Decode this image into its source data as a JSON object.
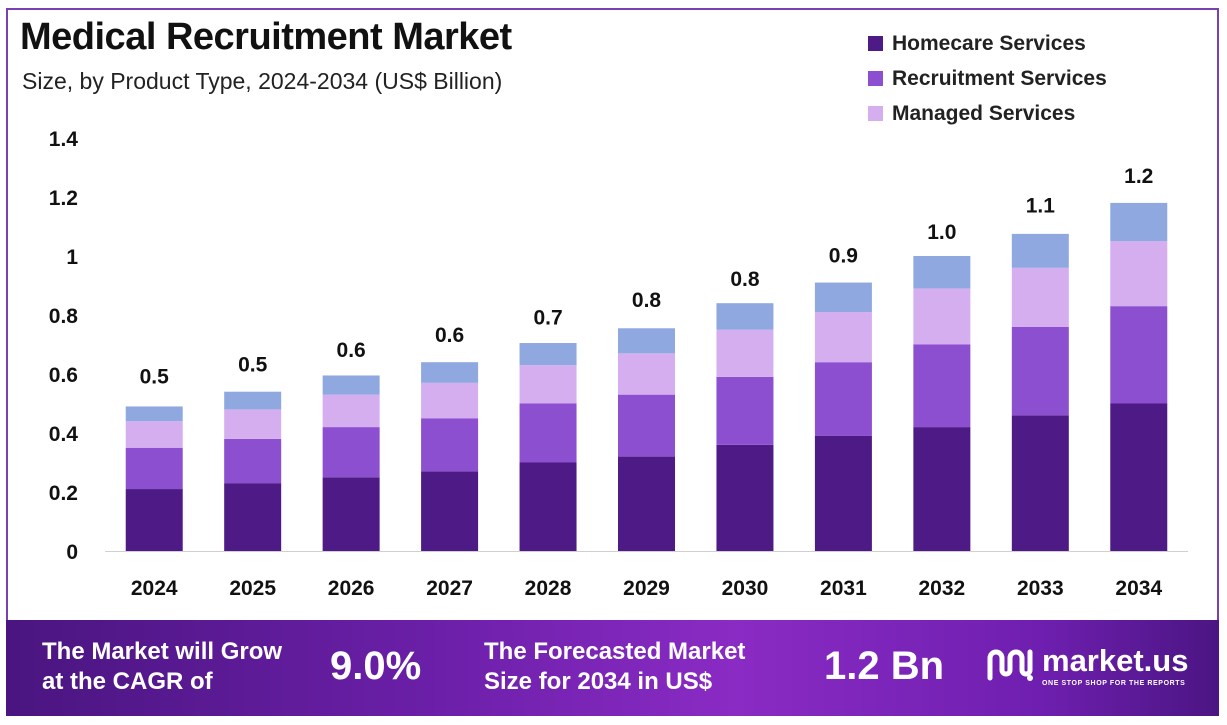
{
  "header": {
    "title": "Medical Recruitment Market",
    "subtitle": "Size, by Product Type, 2024-2034 (US$ Billion)"
  },
  "legend": {
    "items": [
      {
        "label": "Homecare Services",
        "color": "#4e1a86"
      },
      {
        "label": "Recruitment Services",
        "color": "#8b4fd0"
      },
      {
        "label": "Managed Services",
        "color": "#d5aef0"
      }
    ]
  },
  "chart_data": {
    "type": "bar",
    "stacked": true,
    "title": "Medical Recruitment Market",
    "subtitle": "Size, by Product Type, 2024-2034 (US$ Billion)",
    "xlabel": "",
    "ylabel": "",
    "ylim": [
      0,
      1.4
    ],
    "yticks": [
      {
        "value": 0,
        "label": "0"
      },
      {
        "value": 0.2,
        "label": "0.2"
      },
      {
        "value": 0.4,
        "label": "0.4"
      },
      {
        "value": 0.6,
        "label": "0.6"
      },
      {
        "value": 0.8,
        "label": "0.8"
      },
      {
        "value": 1.0,
        "label": "1"
      },
      {
        "value": 1.2,
        "label": "1.2"
      },
      {
        "value": 1.4,
        "label": "1.4"
      }
    ],
    "categories": [
      "2024",
      "2025",
      "2026",
      "2027",
      "2028",
      "2029",
      "2030",
      "2031",
      "2032",
      "2033",
      "2034"
    ],
    "series": [
      {
        "name": "Homecare Services",
        "color": "#4e1a86",
        "values": [
          0.21,
          0.23,
          0.25,
          0.27,
          0.3,
          0.32,
          0.36,
          0.39,
          0.42,
          0.46,
          0.5
        ]
      },
      {
        "name": "Recruitment Services",
        "color": "#8b4fd0",
        "values": [
          0.14,
          0.15,
          0.17,
          0.18,
          0.2,
          0.21,
          0.23,
          0.25,
          0.28,
          0.3,
          0.33
        ]
      },
      {
        "name": "Managed Services",
        "color": "#d5aef0",
        "values": [
          0.09,
          0.1,
          0.11,
          0.12,
          0.13,
          0.14,
          0.16,
          0.17,
          0.19,
          0.2,
          0.22
        ]
      },
      {
        "name": "",
        "color": "#8fa8df",
        "values": [
          0.05,
          0.06,
          0.065,
          0.07,
          0.075,
          0.085,
          0.09,
          0.1,
          0.11,
          0.115,
          0.13
        ]
      }
    ],
    "totals": [
      0.5,
      0.54,
      0.59,
      0.64,
      0.7,
      0.76,
      0.83,
      0.91,
      0.99,
      1.08,
      1.18
    ],
    "total_labels": [
      "0.5",
      "0.5",
      "0.6",
      "0.6",
      "0.7",
      "0.8",
      "0.8",
      "0.9",
      "1.0",
      "1.1",
      "1.2"
    ],
    "grid": false,
    "legend_position": "top-right"
  },
  "banner": {
    "cagr_text_line1": "The Market will Grow",
    "cagr_text_line2": "at the CAGR of",
    "cagr_value": "9.0%",
    "forecast_text_line1": "The Forecasted Market",
    "forecast_text_line2": "Size for 2034 in US$",
    "forecast_value": "1.2 Bn",
    "logo_name": "market.us",
    "logo_tagline": "ONE STOP SHOP FOR THE REPORTS",
    "logo_icon": "market-us-logo-icon"
  }
}
